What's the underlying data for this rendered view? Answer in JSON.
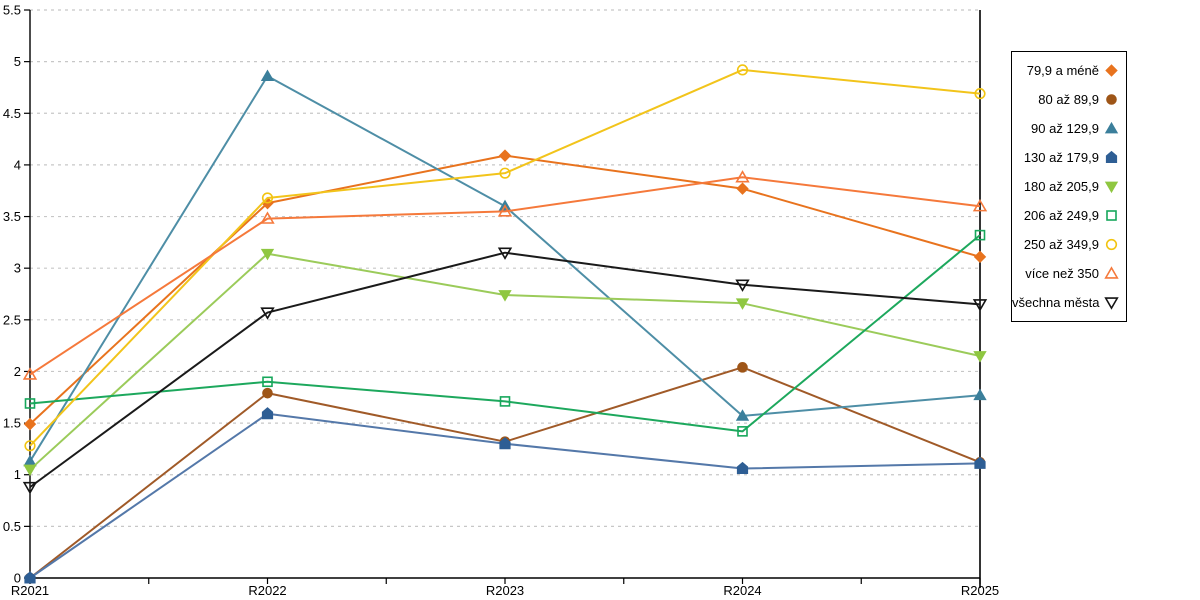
{
  "chart_data": {
    "type": "line",
    "title": "",
    "xlabel": "",
    "ylabel": "",
    "x_categories": [
      "R2021",
      "R2022",
      "R2023",
      "R2024",
      "R2025"
    ],
    "yticks": [
      "0",
      "0.5",
      "1",
      "1.5",
      "2",
      "2.5",
      "3",
      "3.5",
      "4",
      "4.5",
      "5",
      "5.5"
    ],
    "ylim": [
      0,
      5.5
    ],
    "grid": "horizontal-dashed",
    "grid_color": "#c7c7c7",
    "axis_color": "#000000",
    "legend_position": "right",
    "series": [
      {
        "name": "79,9 a méně",
        "marker": "diamond",
        "filled": true,
        "color": "#E8731E",
        "line_color": "#E8731E",
        "values": [
          1.49,
          3.63,
          4.09,
          3.77,
          3.11
        ]
      },
      {
        "name": "80 až 89,9",
        "marker": "circle",
        "filled": true,
        "color": "#9E5517",
        "line_color": "#A05A28",
        "values": [
          0.0,
          1.79,
          1.32,
          2.04,
          1.12
        ]
      },
      {
        "name": "90 až 129,9",
        "marker": "triangle-up",
        "filled": true,
        "color": "#3B7F9B",
        "line_color": "#4E8EA6",
        "values": [
          1.13,
          4.86,
          3.6,
          1.57,
          1.77
        ]
      },
      {
        "name": "130 až 179,9",
        "marker": "pentagon",
        "filled": true,
        "color": "#2E5E94",
        "line_color": "#5478A9",
        "values": [
          0.0,
          1.59,
          1.3,
          1.06,
          1.11
        ]
      },
      {
        "name": "180 až 205,9",
        "marker": "triangle-down",
        "filled": true,
        "color": "#8FC741",
        "line_color": "#9BCB5A",
        "values": [
          1.05,
          3.14,
          2.74,
          2.66,
          2.15
        ]
      },
      {
        "name": "206 až 249,9",
        "marker": "square",
        "filled": false,
        "color": "#17A75B",
        "line_color": "#1DA85D",
        "values": [
          1.69,
          1.9,
          1.71,
          1.42,
          3.32
        ]
      },
      {
        "name": "250 až 349,9",
        "marker": "circle",
        "filled": false,
        "color": "#F2C410",
        "line_color": "#F2C41B",
        "values": [
          1.28,
          3.68,
          3.92,
          4.92,
          4.69
        ]
      },
      {
        "name": "více než 350",
        "marker": "triangle-up",
        "filled": false,
        "color": "#F5793B",
        "line_color": "#F5793B",
        "values": [
          1.97,
          3.48,
          3.55,
          3.88,
          3.6
        ]
      },
      {
        "name": "všechna města",
        "marker": "triangle-down",
        "filled": false,
        "color": "#141414",
        "line_color": "#1A1A1A",
        "values": [
          0.88,
          2.57,
          3.15,
          2.84,
          2.65
        ]
      }
    ]
  }
}
